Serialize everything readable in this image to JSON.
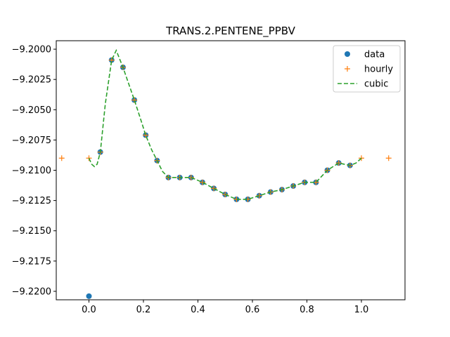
{
  "chart_data": {
    "type": "line",
    "title": "TRANS.2.PENTENE_PPBV",
    "xlabel": "",
    "ylabel": "",
    "xlim": [
      -0.12,
      1.16
    ],
    "ylim": [
      -9.2207,
      -9.1993
    ],
    "xticks": [
      0.0,
      0.2,
      0.4,
      0.6,
      0.8,
      1.0
    ],
    "xtick_labels": [
      "0.0",
      "0.2",
      "0.4",
      "0.6",
      "0.8",
      "1.0"
    ],
    "yticks": [
      -9.2,
      -9.2025,
      -9.205,
      -9.2075,
      -9.21,
      -9.2125,
      -9.215,
      -9.2175,
      -9.22
    ],
    "ytick_labels": [
      "−9.2000",
      "−9.2025",
      "−9.2050",
      "−9.2075",
      "−9.2100",
      "−9.2125",
      "−9.2150",
      "−9.2175",
      "−9.2200"
    ],
    "legend_position": "top-right",
    "grid": false,
    "series": [
      {
        "name": "data",
        "kind": "scatter",
        "marker": "circle",
        "color": "#1f77b4",
        "x": [
          0.0,
          0.0417,
          0.0833,
          0.125,
          0.1667,
          0.2083,
          0.25,
          0.2917,
          0.3333,
          0.375,
          0.4167,
          0.4583,
          0.5,
          0.5417,
          0.5833,
          0.625,
          0.6667,
          0.7083,
          0.75,
          0.7917,
          0.8333,
          0.875,
          0.9167,
          0.9583
        ],
        "y": [
          -9.2204,
          -9.2085,
          -9.2009,
          -9.2015,
          -9.2042,
          -9.2071,
          -9.2092,
          -9.2106,
          -9.2106,
          -9.2106,
          -9.211,
          -9.2115,
          -9.212,
          -9.2124,
          -9.2124,
          -9.2121,
          -9.2118,
          -9.2116,
          -9.2113,
          -9.211,
          -9.211,
          -9.21,
          -9.2094,
          -9.2096
        ]
      },
      {
        "name": "hourly",
        "kind": "scatter",
        "marker": "plus",
        "color": "#ff7f0e",
        "x": [
          -0.1,
          0.0,
          0.0417,
          0.0833,
          0.125,
          0.1667,
          0.2083,
          0.25,
          0.2917,
          0.3333,
          0.375,
          0.4167,
          0.4583,
          0.5,
          0.5417,
          0.5833,
          0.625,
          0.6667,
          0.7083,
          0.75,
          0.7917,
          0.8333,
          0.875,
          0.9167,
          0.9583,
          1.0,
          1.1
        ],
        "y": [
          -9.209,
          -9.209,
          -9.2085,
          -9.2009,
          -9.2015,
          -9.2042,
          -9.2071,
          -9.2092,
          -9.2106,
          -9.2106,
          -9.2106,
          -9.211,
          -9.2115,
          -9.212,
          -9.2124,
          -9.2124,
          -9.2121,
          -9.2118,
          -9.2116,
          -9.2113,
          -9.211,
          -9.211,
          -9.21,
          -9.2094,
          -9.2096,
          -9.209,
          -9.209
        ]
      },
      {
        "name": "cubic",
        "kind": "line",
        "dash": "dashed",
        "color": "#2ca02c",
        "x": [
          0.0,
          0.01,
          0.02,
          0.03,
          0.0417,
          0.06,
          0.0833,
          0.1,
          0.125,
          0.145,
          0.1667,
          0.19,
          0.2083,
          0.23,
          0.25,
          0.27,
          0.2917,
          0.3333,
          0.375,
          0.4167,
          0.4583,
          0.5,
          0.5417,
          0.5833,
          0.625,
          0.6667,
          0.7083,
          0.75,
          0.7917,
          0.8333,
          0.875,
          0.9167,
          0.9583,
          0.98,
          1.0
        ],
        "y": [
          -9.209,
          -9.2095,
          -9.2097,
          -9.2095,
          -9.2085,
          -9.2045,
          -9.2009,
          -9.2001,
          -9.2015,
          -9.2028,
          -9.2042,
          -9.2058,
          -9.2071,
          -9.2083,
          -9.2092,
          -9.2101,
          -9.2106,
          -9.2106,
          -9.2106,
          -9.211,
          -9.2115,
          -9.212,
          -9.2124,
          -9.2124,
          -9.2121,
          -9.2118,
          -9.2116,
          -9.2113,
          -9.211,
          -9.211,
          -9.21,
          -9.2094,
          -9.2096,
          -9.2094,
          -9.209
        ]
      }
    ]
  }
}
